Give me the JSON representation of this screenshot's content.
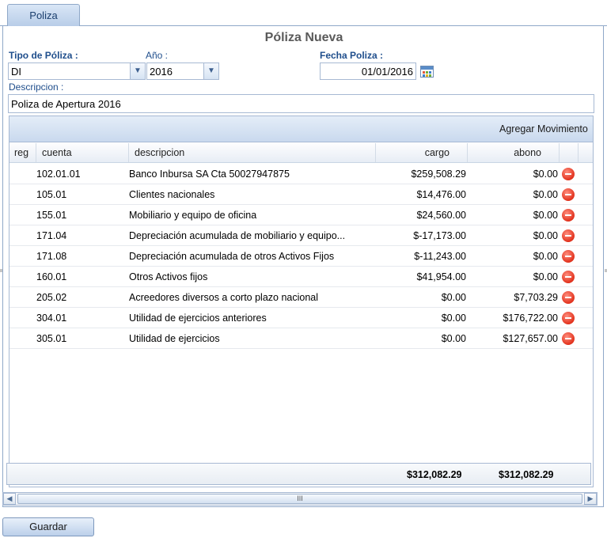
{
  "tab": {
    "label": "Poliza"
  },
  "form": {
    "title": "Póliza Nueva",
    "tipo_label": "Tipo de Póliza :",
    "tipo_value": "DI",
    "anio_label": "Año :",
    "anio_value": "2016",
    "fecha_label": "Fecha Poliza :",
    "fecha_value": "01/01/2016",
    "desc_label": "Descripcion :",
    "desc_value": "Poliza de Apertura 2016"
  },
  "grid": {
    "add_button": "Agregar Movimiento",
    "columns": {
      "reg": "reg",
      "cuenta": "cuenta",
      "descripcion": "descripcion",
      "cargo": "cargo",
      "abono": "abono"
    },
    "rows": [
      {
        "cuenta": "102.01.01",
        "descripcion": "Banco Inbursa SA Cta 50027947875",
        "cargo": "$259,508.29",
        "abono": "$0.00"
      },
      {
        "cuenta": "105.01",
        "descripcion": "Clientes nacionales",
        "cargo": "$14,476.00",
        "abono": "$0.00"
      },
      {
        "cuenta": "155.01",
        "descripcion": "Mobiliario y equipo de oficina",
        "cargo": "$24,560.00",
        "abono": "$0.00"
      },
      {
        "cuenta": "171.04",
        "descripcion": "Depreciación acumulada de mobiliario y equipo...",
        "cargo": "$-17,173.00",
        "abono": "$0.00"
      },
      {
        "cuenta": "171.08",
        "descripcion": "Depreciación acumulada de otros Activos Fijos",
        "cargo": "$-11,243.00",
        "abono": "$0.00"
      },
      {
        "cuenta": "160.01",
        "descripcion": "Otros Activos fijos",
        "cargo": "$41,954.00",
        "abono": "$0.00"
      },
      {
        "cuenta": "205.02",
        "descripcion": "Acreedores diversos a corto plazo nacional",
        "cargo": "$0.00",
        "abono": "$7,703.29"
      },
      {
        "cuenta": "304.01",
        "descripcion": "Utilidad de ejercicios anteriores",
        "cargo": "$0.00",
        "abono": "$176,722.00"
      },
      {
        "cuenta": "305.01",
        "descripcion": "Utilidad de ejercicios",
        "cargo": "$0.00",
        "abono": "$127,657.00"
      }
    ],
    "total_cargo": "$312,082.29",
    "total_abono": "$312,082.29",
    "delete_icon": "remove-circle-icon"
  },
  "scrollbar": {
    "thumb_grip": "III"
  },
  "actions": {
    "save_label": "Guardar"
  },
  "colors": {
    "label_blue": "#1f4e8c",
    "delete_red": "#e2321d",
    "header_blue": "#c9d9ee"
  }
}
